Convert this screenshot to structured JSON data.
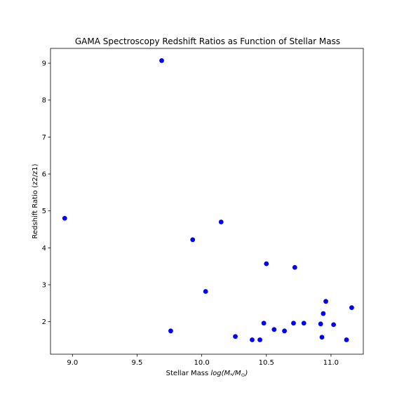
{
  "chart_data": {
    "type": "scatter",
    "title": "GAMA Spectroscopy Redshift Ratios as Function of Stellar Mass",
    "xlabel_prefix": "Stellar Mass ",
    "xlabel_math": "log(M",
    "xlabel_sub1": "*",
    "xlabel_mid": "/M",
    "xlabel_sub2": "⊙",
    "xlabel_suffix": ")",
    "ylabel": "Redshift Ratio (z2/z1)",
    "xlim": [
      8.83,
      11.25
    ],
    "ylim": [
      1.12,
      9.4
    ],
    "xticks": [
      9.0,
      9.5,
      10.0,
      10.5,
      11.0
    ],
    "xtick_labels": [
      "9.0",
      "9.5",
      "10.0",
      "10.5",
      "11.0"
    ],
    "yticks": [
      2,
      3,
      4,
      5,
      6,
      7,
      8,
      9
    ],
    "ytick_labels": [
      "2",
      "3",
      "4",
      "5",
      "6",
      "7",
      "8",
      "9"
    ],
    "grid": false,
    "marker_color": "#0000ff",
    "points": [
      {
        "x": 8.94,
        "y": 4.8
      },
      {
        "x": 9.69,
        "y": 9.07
      },
      {
        "x": 9.76,
        "y": 1.75
      },
      {
        "x": 9.93,
        "y": 4.22
      },
      {
        "x": 10.03,
        "y": 2.82
      },
      {
        "x": 10.15,
        "y": 4.7
      },
      {
        "x": 10.26,
        "y": 1.6
      },
      {
        "x": 10.39,
        "y": 1.51
      },
      {
        "x": 10.45,
        "y": 1.51
      },
      {
        "x": 10.48,
        "y": 1.96
      },
      {
        "x": 10.5,
        "y": 3.57
      },
      {
        "x": 10.56,
        "y": 1.79
      },
      {
        "x": 10.64,
        "y": 1.75
      },
      {
        "x": 10.71,
        "y": 1.96
      },
      {
        "x": 10.72,
        "y": 3.47
      },
      {
        "x": 10.79,
        "y": 1.96
      },
      {
        "x": 10.92,
        "y": 1.94
      },
      {
        "x": 10.93,
        "y": 1.58
      },
      {
        "x": 10.94,
        "y": 2.22
      },
      {
        "x": 10.96,
        "y": 2.55
      },
      {
        "x": 11.02,
        "y": 1.92
      },
      {
        "x": 11.12,
        "y": 1.51
      },
      {
        "x": 11.16,
        "y": 2.38
      }
    ]
  }
}
